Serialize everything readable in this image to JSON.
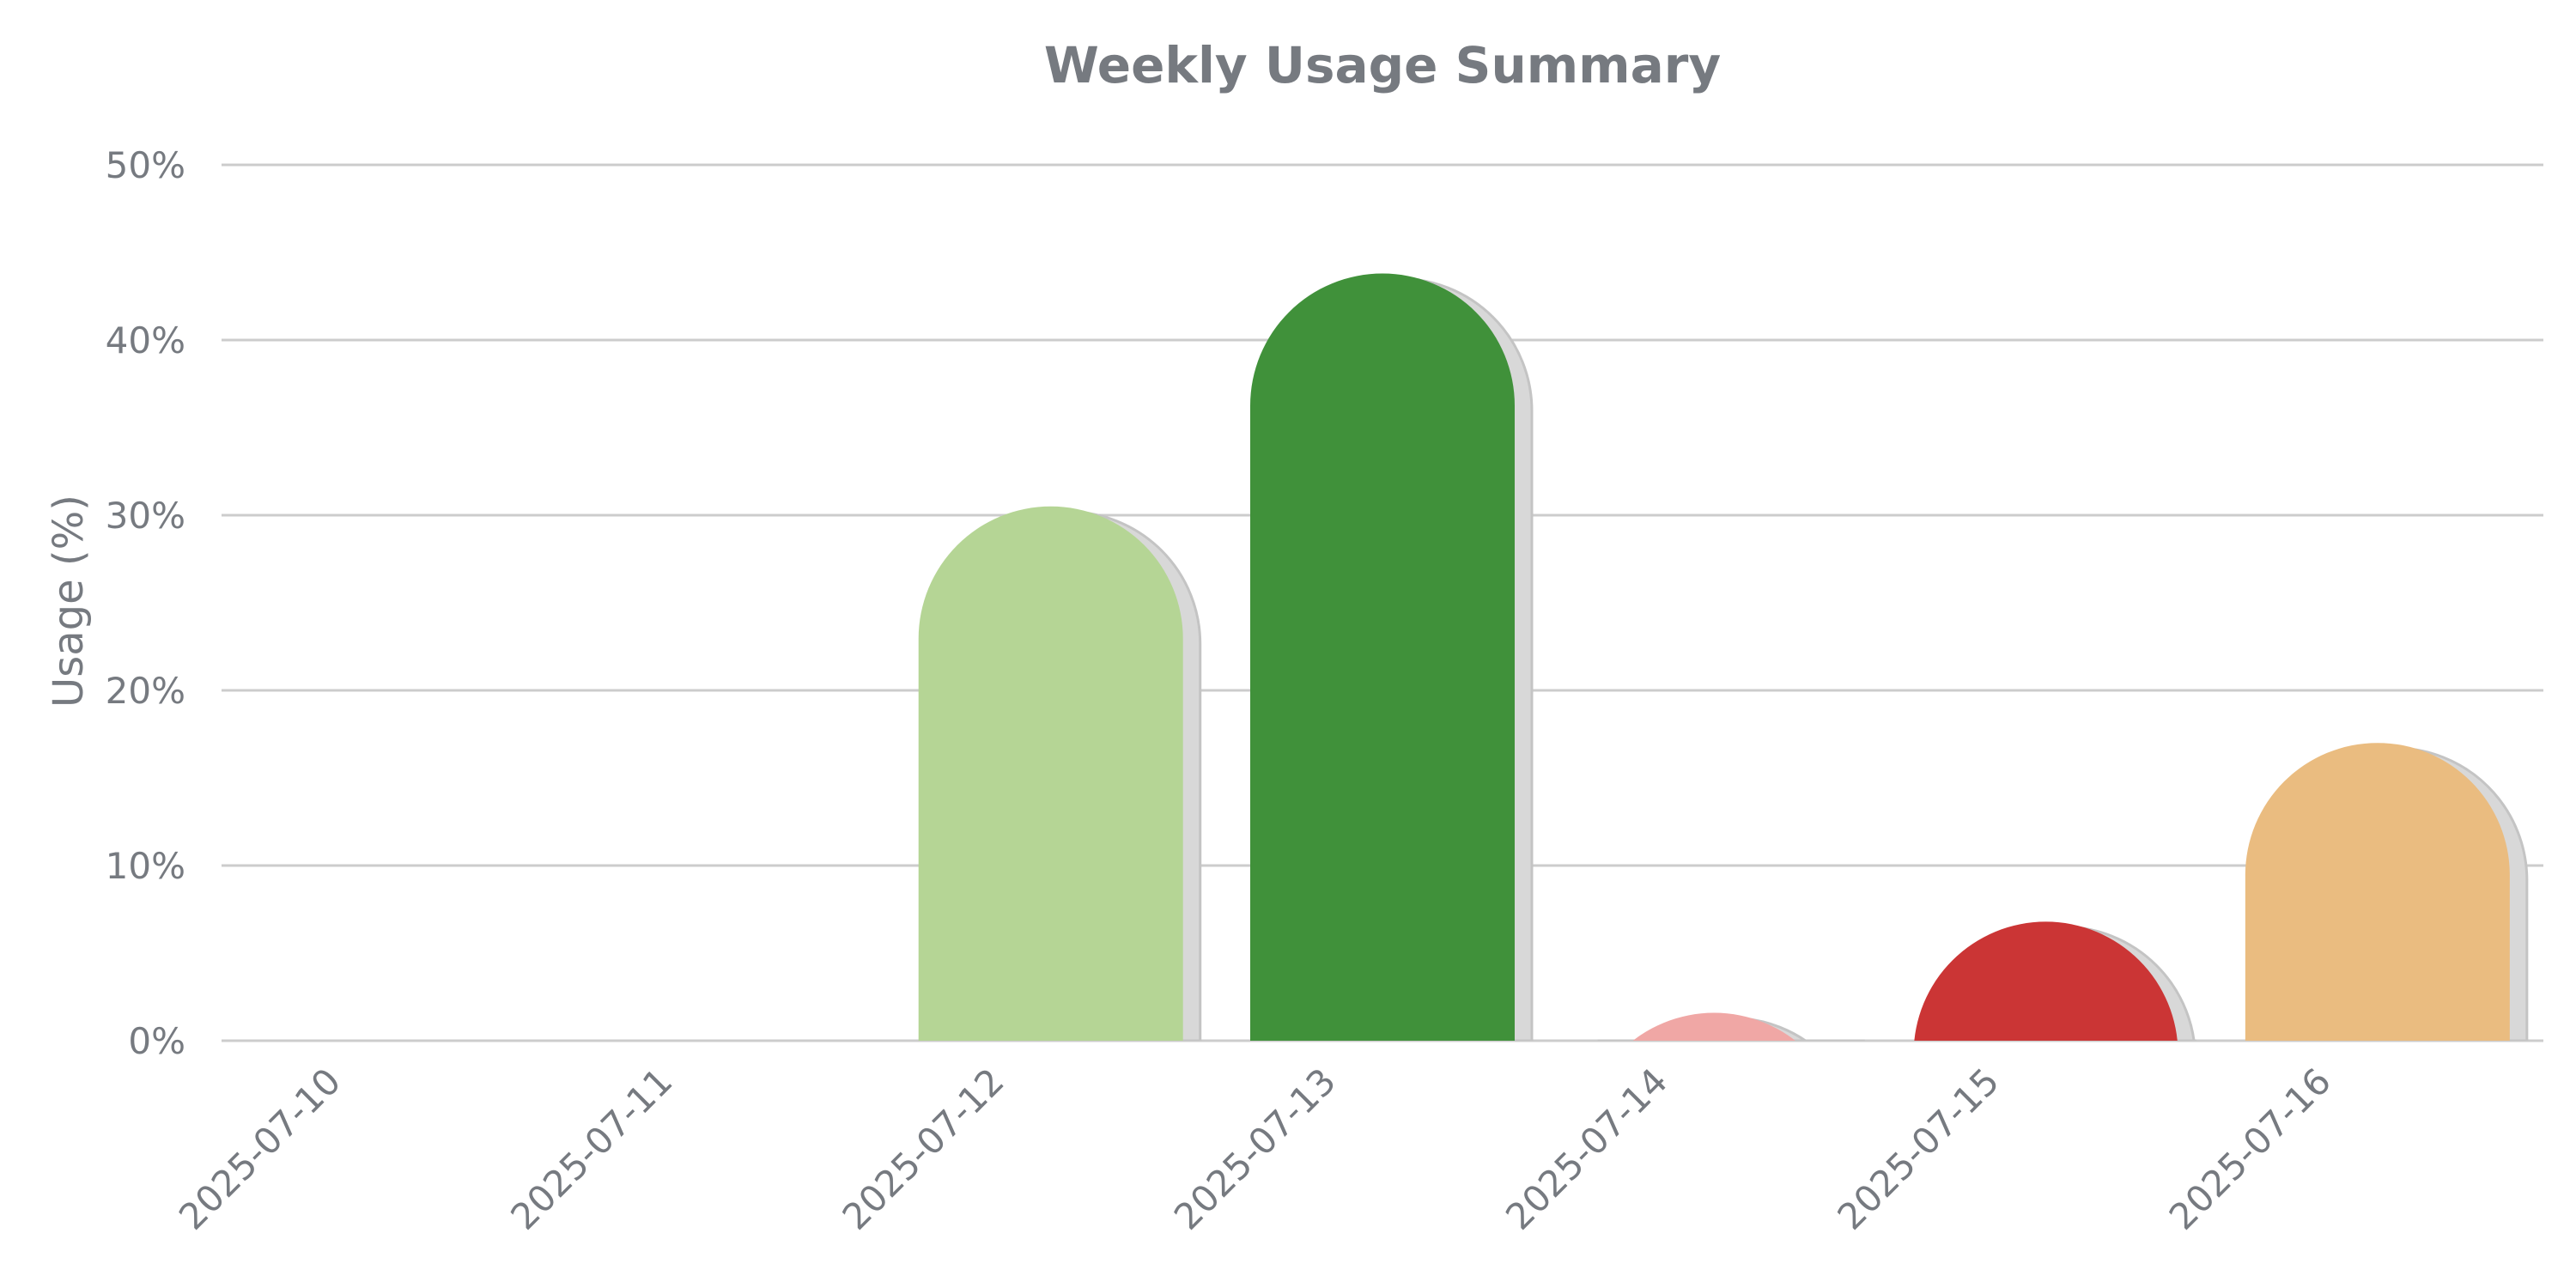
{
  "chart_data": {
    "type": "bar",
    "title": "Weekly Usage Summary",
    "xlabel": "",
    "ylabel": "Usage (%)",
    "ylim": [
      0,
      50
    ],
    "yticks": [
      0,
      10,
      20,
      30,
      40,
      50
    ],
    "ytick_labels": [
      "0%",
      "10%",
      "20%",
      "30%",
      "40%",
      "50%"
    ],
    "grid": true,
    "categories": [
      "2025-07-10",
      "2025-07-11",
      "2025-07-12",
      "2025-07-13",
      "2025-07-14",
      "2025-07-15",
      "2025-07-16"
    ],
    "values": [
      0,
      0,
      30.5,
      43.8,
      1.6,
      6.8,
      17.0
    ],
    "colors": [
      "#b5d595",
      "#b5d595",
      "#b5d595",
      "#40913a",
      "#f0a7a5",
      "#cb3535",
      "#eabc80"
    ]
  }
}
